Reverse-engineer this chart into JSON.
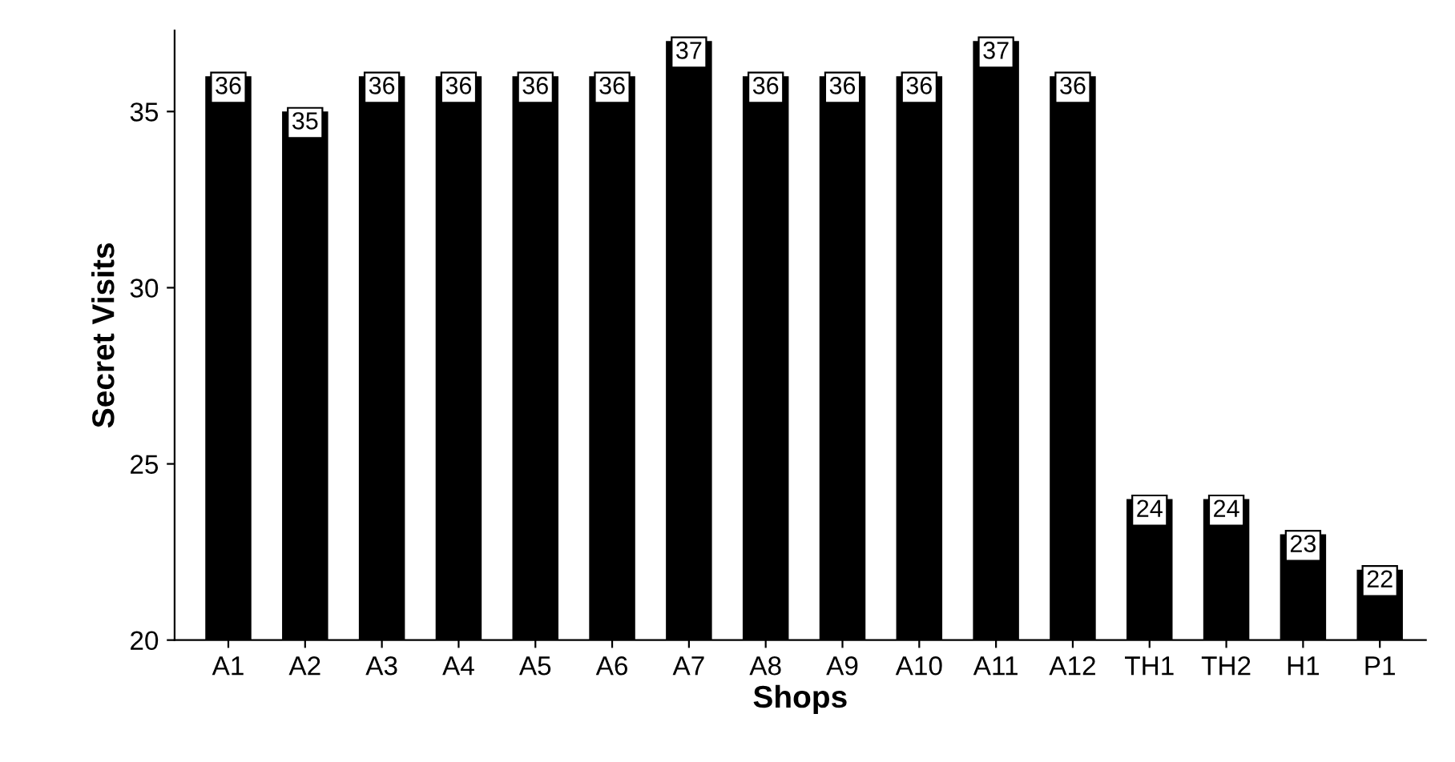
{
  "chart_data": {
    "type": "bar",
    "xlabel": "Shops",
    "ylabel": "Secret Visits",
    "categories": [
      "A1",
      "A2",
      "A3",
      "A4",
      "A5",
      "A6",
      "A7",
      "A8",
      "A9",
      "A10",
      "A11",
      "A12",
      "TH1",
      "TH2",
      "H1",
      "P1"
    ],
    "values": [
      36,
      35,
      36,
      36,
      36,
      36,
      37,
      36,
      36,
      36,
      37,
      36,
      24,
      24,
      23,
      22
    ],
    "color": "#000000",
    "ylim": [
      20,
      37.3
    ],
    "yticks": [
      20,
      25,
      30,
      35
    ],
    "grid": false,
    "data_labels": true
  }
}
